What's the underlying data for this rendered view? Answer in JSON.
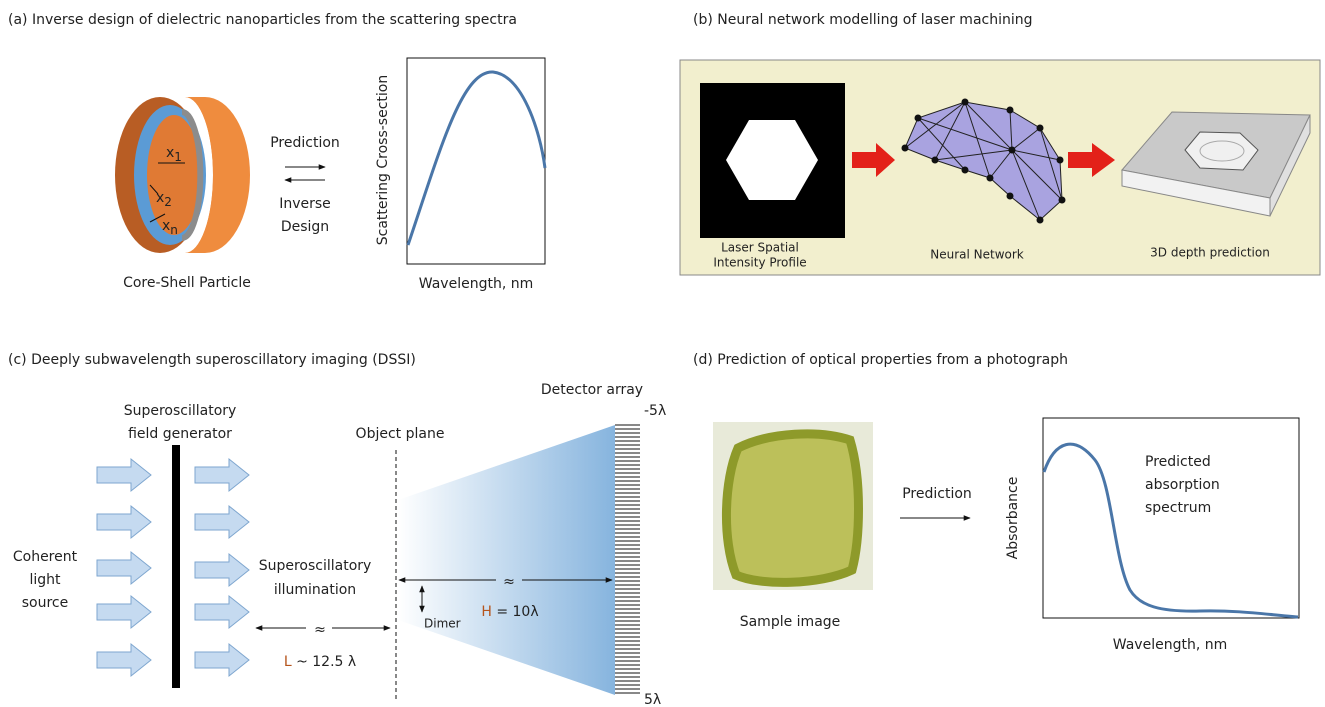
{
  "panel_a": {
    "title": "(a) Inverse design of dielectric nanoparticles from the scattering spectra",
    "layers": [
      {
        "symbol": "x",
        "sub": "1"
      },
      {
        "symbol": "x",
        "sub": "2"
      },
      {
        "symbol": "x",
        "sub": "n"
      }
    ],
    "particle_label": "Core-Shell Particle",
    "forward": "Prediction",
    "inverse": [
      "Inverse",
      "Design"
    ],
    "y_axis": "Scattering Cross-section",
    "x_axis": "Wavelength, nm"
  },
  "panel_b": {
    "title": "(b) Neural network modelling of laser machining",
    "steps": [
      [
        "Laser Spatial",
        "Intensity Profile"
      ],
      [
        "Neural Network"
      ],
      [
        "3D depth prediction"
      ]
    ]
  },
  "panel_c": {
    "title": "(c) Deeply subwavelength superoscillatory imaging (DSSI)",
    "source": [
      "Coherent",
      "light",
      "source"
    ],
    "generator": [
      "Superoscillatory",
      "field generator"
    ],
    "object_plane": "Object plane",
    "detector": "Detector array",
    "illumination": [
      "Superoscillatory",
      "illumination"
    ],
    "dimer": "Dimer",
    "approx": [
      "≈",
      "≈"
    ],
    "L": {
      "symbol": "L",
      "text": " ~ 12.5 λ"
    },
    "H": {
      "symbol": "H",
      "text": " = 10λ"
    },
    "scale": [
      "-5λ",
      "5λ"
    ]
  },
  "panel_d": {
    "title": "(d) Prediction of optical properties from a photograph",
    "sample_label": "Sample image",
    "forward": "Prediction",
    "annotation": [
      "Predicted",
      "absorption",
      "spectrum"
    ],
    "y_axis": "Absorbance",
    "x_axis": "Wavelength, nm"
  }
}
